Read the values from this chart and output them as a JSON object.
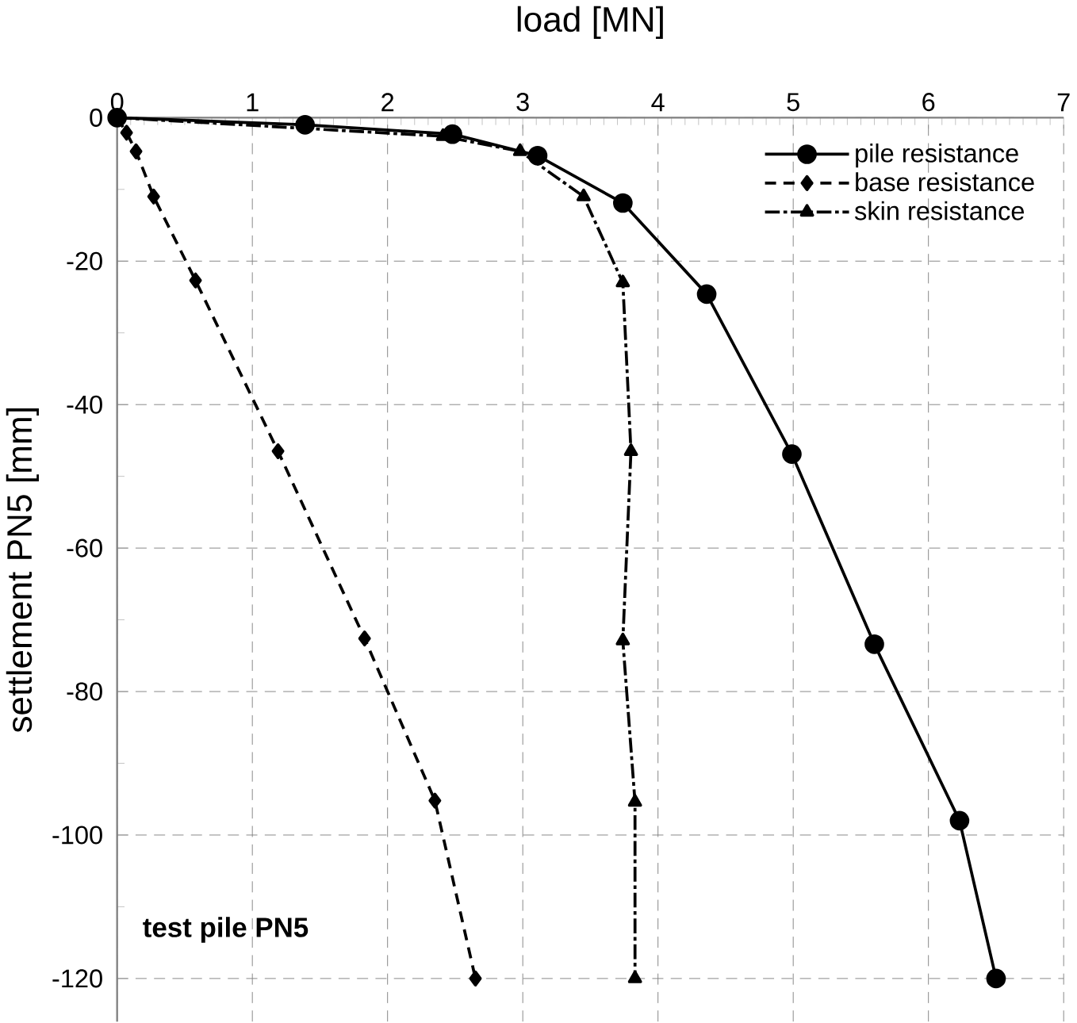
{
  "chart_data": {
    "type": "line",
    "xlabel": "load [MN]",
    "ylabel": "settlement PN5 [mm]",
    "xlim": [
      0,
      7
    ],
    "xticks": [
      0,
      1,
      2,
      3,
      4,
      5,
      6,
      7
    ],
    "ylim": [
      -126,
      0
    ],
    "yticks": [
      -120,
      -100,
      -80,
      -60,
      -40,
      -20,
      0
    ],
    "grid": true,
    "legend": "top right",
    "annotations": [
      "test pile PN5"
    ],
    "series": [
      {
        "name": "pile resistance",
        "color": "#000000",
        "marker": "circle",
        "line_style": "solid",
        "x": [
          0,
          1.39,
          2.48,
          3.11,
          3.74,
          4.36,
          4.99,
          5.6,
          6.23,
          6.5
        ],
        "values": [
          0,
          -1.0,
          -2.3,
          -5.3,
          -11.9,
          -24.6,
          -46.9,
          -73.4,
          -98,
          -120
        ]
      },
      {
        "name": "base resistance",
        "color": "#000000",
        "marker": "diamond",
        "line_style": "dashed",
        "x": [
          0,
          0.07,
          0.14,
          0.27,
          0.58,
          1.19,
          1.83,
          2.35,
          2.65
        ],
        "values": [
          0,
          -2.1,
          -4.7,
          -11,
          -22.7,
          -46.5,
          -72.6,
          -95.2,
          -120
        ]
      },
      {
        "name": "skin resistance",
        "color": "#000000",
        "marker": "triangle",
        "line_style": "dashdot",
        "x": [
          0,
          2.41,
          2.98,
          3.45,
          3.74,
          3.8,
          3.74,
          3.83,
          3.83
        ],
        "values": [
          0,
          -2.6,
          -4.7,
          -11,
          -23,
          -46.5,
          -72.9,
          -95.4,
          -120
        ]
      }
    ]
  }
}
